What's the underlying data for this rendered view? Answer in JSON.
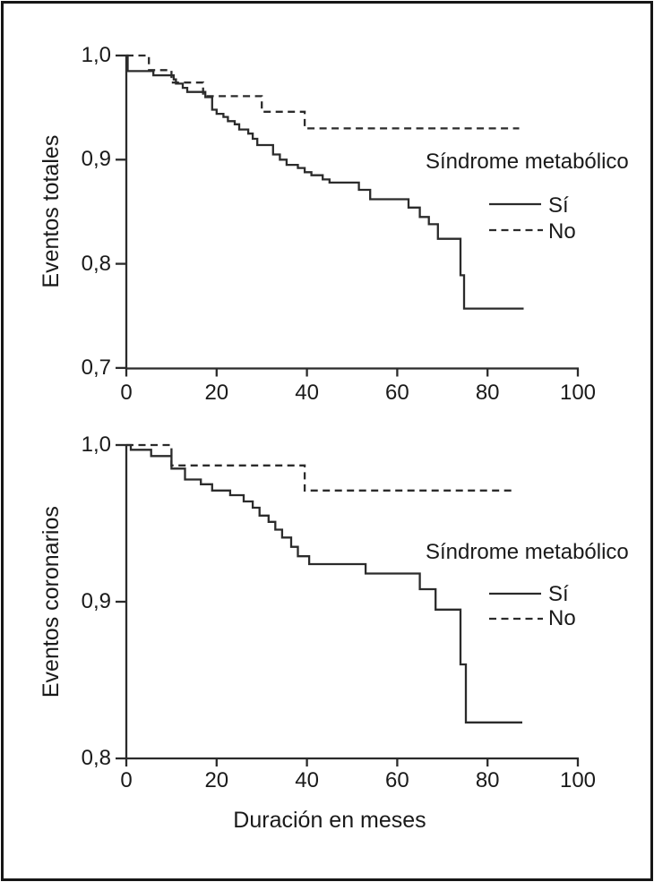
{
  "figure": {
    "background": "#ffffff",
    "border_color": "#161616",
    "line_color": "#2b2b2b",
    "text_color": "#1a1a1a"
  },
  "chart_data": [
    {
      "type": "line",
      "subtype": "kaplan-meier-step",
      "title": "",
      "ylabel": "Eventos totales",
      "xlabel": "",
      "xlim": [
        0,
        100
      ],
      "ylim": [
        0.7,
        1.0
      ],
      "grid": false,
      "xtick_labels": [
        "0",
        "20",
        "40",
        "60",
        "80",
        "100"
      ],
      "xtick_values": [
        0,
        20,
        40,
        60,
        80,
        100
      ],
      "ytick_labels": [
        "1,0",
        "0,9",
        "0,8",
        "0,7"
      ],
      "ytick_values": [
        1.0,
        0.9,
        0.8,
        0.7
      ],
      "legend": {
        "title": "Síndrome metabólico",
        "position": "right-middle",
        "items": [
          {
            "label": "Sí",
            "line": "solid"
          },
          {
            "label": "No",
            "line": "dashed"
          }
        ]
      },
      "series": [
        {
          "name": "Sí",
          "line": "solid",
          "end_x": 88,
          "points": [
            [
              0,
              1.0
            ],
            [
              0.3,
              0.985
            ],
            [
              6,
              0.981
            ],
            [
              10.5,
              0.977
            ],
            [
              11,
              0.973
            ],
            [
              12.5,
              0.969
            ],
            [
              13.5,
              0.965
            ],
            [
              17.5,
              0.96
            ],
            [
              19,
              0.948
            ],
            [
              20,
              0.944
            ],
            [
              21.5,
              0.941
            ],
            [
              22.5,
              0.937
            ],
            [
              24,
              0.934
            ],
            [
              25,
              0.929
            ],
            [
              27,
              0.925
            ],
            [
              28,
              0.92
            ],
            [
              29,
              0.914
            ],
            [
              32.5,
              0.905
            ],
            [
              34,
              0.9
            ],
            [
              35.5,
              0.895
            ],
            [
              38,
              0.892
            ],
            [
              39.5,
              0.888
            ],
            [
              41,
              0.885
            ],
            [
              43.5,
              0.881
            ],
            [
              45,
              0.878
            ],
            [
              51.5,
              0.871
            ],
            [
              54,
              0.862
            ],
            [
              62.5,
              0.854
            ],
            [
              65,
              0.845
            ],
            [
              67,
              0.838
            ],
            [
              69,
              0.824
            ],
            [
              74,
              0.789
            ],
            [
              74.8,
              0.757
            ]
          ]
        },
        {
          "name": "No",
          "line": "dashed",
          "end_x": 87,
          "points": [
            [
              0,
              1.0
            ],
            [
              5,
              0.986
            ],
            [
              10,
              0.974
            ],
            [
              17,
              0.961
            ],
            [
              30,
              0.946
            ],
            [
              39.5,
              0.93
            ]
          ]
        }
      ]
    },
    {
      "type": "line",
      "subtype": "kaplan-meier-step",
      "title": "",
      "ylabel": "Eventos coronarios",
      "xlabel": "Duración en meses",
      "xlim": [
        0,
        100
      ],
      "ylim": [
        0.8,
        1.0
      ],
      "grid": false,
      "xtick_labels": [
        "0",
        "20",
        "40",
        "60",
        "80",
        "100"
      ],
      "xtick_values": [
        0,
        20,
        40,
        60,
        80,
        100
      ],
      "ytick_labels": [
        "1,0",
        "0,9",
        "0,8"
      ],
      "ytick_values": [
        1.0,
        0.9,
        0.8
      ],
      "legend": {
        "title": "Síndrome metabólico",
        "position": "right-middle",
        "items": [
          {
            "label": "Sí",
            "line": "solid"
          },
          {
            "label": "No",
            "line": "dashed"
          }
        ]
      },
      "series": [
        {
          "name": "Sí",
          "line": "solid",
          "end_x": 87.7,
          "points": [
            [
              0,
              1.0
            ],
            [
              1,
              0.997
            ],
            [
              5.5,
              0.993
            ],
            [
              10,
              0.985
            ],
            [
              13,
              0.978
            ],
            [
              16.5,
              0.975
            ],
            [
              19,
              0.971
            ],
            [
              23,
              0.968
            ],
            [
              26,
              0.964
            ],
            [
              28,
              0.96
            ],
            [
              29.5,
              0.955
            ],
            [
              31.5,
              0.951
            ],
            [
              33,
              0.946
            ],
            [
              34.5,
              0.941
            ],
            [
              36.5,
              0.935
            ],
            [
              38,
              0.929
            ],
            [
              40.5,
              0.924
            ],
            [
              53,
              0.918
            ],
            [
              65,
              0.908
            ],
            [
              68.5,
              0.895
            ],
            [
              74,
              0.86
            ],
            [
              75.2,
              0.823
            ]
          ]
        },
        {
          "name": "No",
          "line": "dashed",
          "end_x": 86,
          "points": [
            [
              0,
              1.0
            ],
            [
              10,
              0.987
            ],
            [
              39.5,
              0.971
            ]
          ]
        }
      ]
    }
  ]
}
